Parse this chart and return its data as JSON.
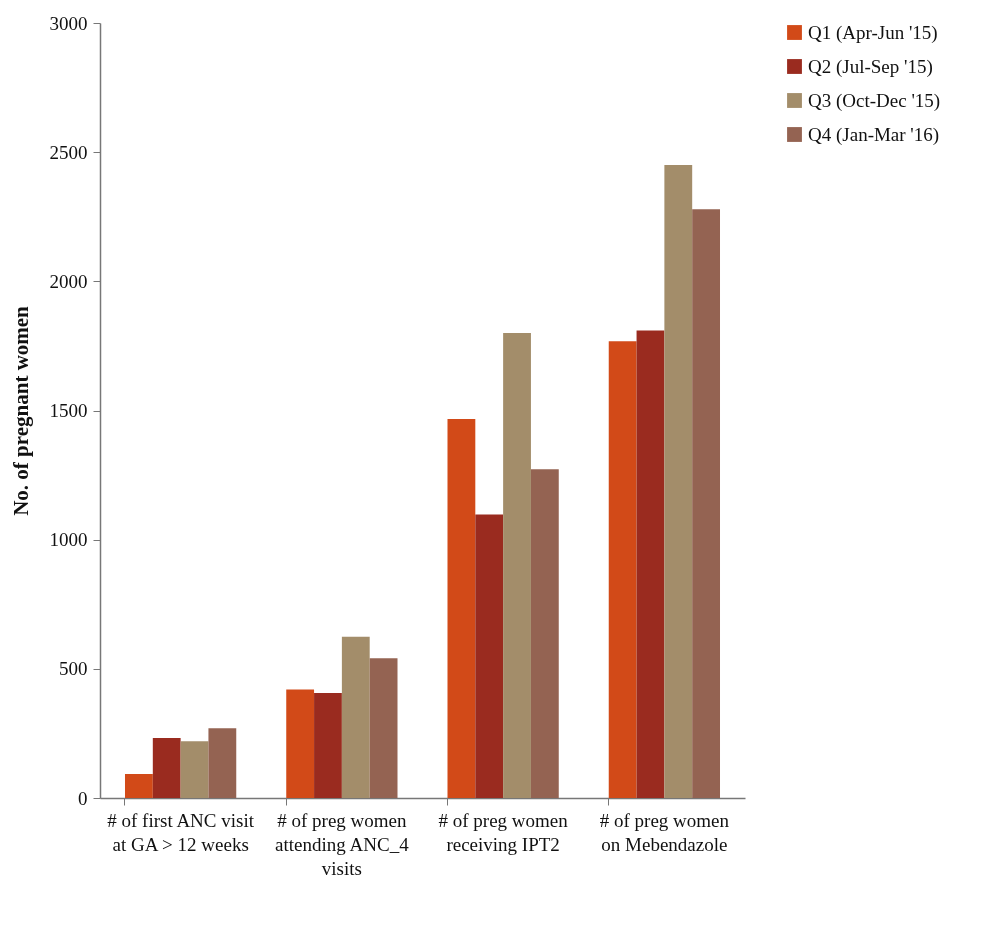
{
  "chart_data": {
    "type": "bar",
    "ylabel": "No. of pregnant women",
    "categories": [
      "# of first ANC visit at GA > 12 weeks",
      "# of preg women attending ANC_4 visits",
      "# of preg women receiving IPT2",
      "# of preg women on Mebendazole"
    ],
    "series": [
      {
        "name": "Q1 (Apr-Jun '15)",
        "color": "#d24a18",
        "values": [
          93,
          420,
          1467,
          1768
        ]
      },
      {
        "name": "Q2 (Jul-Sep '15)",
        "color": "#9a2b1f",
        "values": [
          232,
          406,
          1097,
          1810
        ]
      },
      {
        "name": "Q3 (Oct-Dec '15)",
        "color": "#a38d6a",
        "values": [
          220,
          624,
          1800,
          2450
        ]
      },
      {
        "name": "Q4 (Jan-Mar '16)",
        "color": "#946352",
        "values": [
          270,
          541,
          1273,
          2279
        ]
      }
    ],
    "ylim": [
      0,
      3000
    ],
    "yticks": [
      0,
      500,
      1000,
      1500,
      2000,
      2500,
      3000
    ],
    "grid": false,
    "legend": "right"
  }
}
